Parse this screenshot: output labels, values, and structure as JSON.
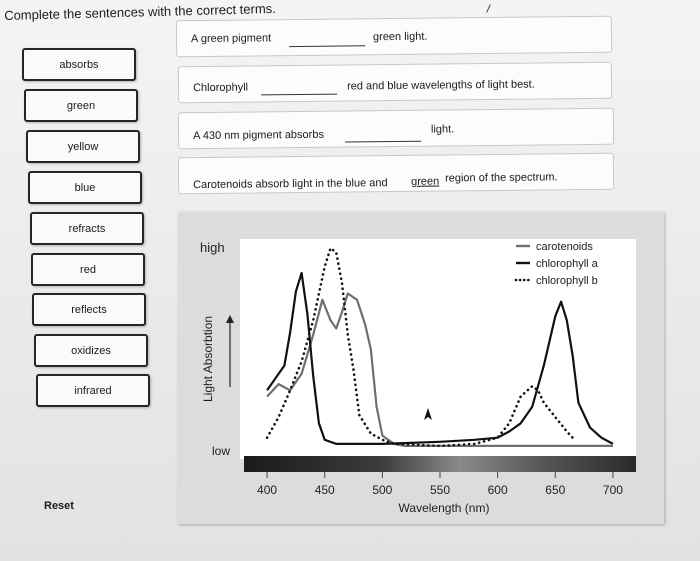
{
  "instructions": "Complete the sentences with the correct terms.",
  "word_bank": [
    {
      "label": "absorbs"
    },
    {
      "label": "green"
    },
    {
      "label": "yellow"
    },
    {
      "label": "blue"
    },
    {
      "label": "refracts"
    },
    {
      "label": "red"
    },
    {
      "label": "reflects"
    },
    {
      "label": "oxidizes"
    },
    {
      "label": "infrared"
    }
  ],
  "sentences": [
    {
      "before": "A green pigment",
      "after": "green light."
    },
    {
      "before": "Chlorophyll",
      "after": "red and blue wavelengths of light best."
    },
    {
      "before": "A 430 nm pigment absorbs",
      "after": "light."
    },
    {
      "before": "Carotenoids absorb light in the blue and",
      "filled": "green",
      "after": "region of the spectrum."
    }
  ],
  "reset_label": "Reset",
  "chart_data": {
    "type": "line",
    "xlabel": "Wavelength (nm)",
    "ylabel": "Light Absorbtion",
    "y_high_label": "high",
    "y_low_label": "low",
    "xlim": [
      380,
      720
    ],
    "ylim": [
      0,
      1
    ],
    "x_ticks": [
      400,
      450,
      500,
      550,
      600,
      650,
      700
    ],
    "grid": false,
    "legend_position": "top-right",
    "series": [
      {
        "name": "carotenoids",
        "style": "solid",
        "color": "#6f6f6f",
        "points": [
          [
            400,
            0.25
          ],
          [
            410,
            0.31
          ],
          [
            420,
            0.28
          ],
          [
            430,
            0.36
          ],
          [
            440,
            0.55
          ],
          [
            448,
            0.72
          ],
          [
            455,
            0.62
          ],
          [
            460,
            0.58
          ],
          [
            465,
            0.66
          ],
          [
            470,
            0.75
          ],
          [
            478,
            0.72
          ],
          [
            485,
            0.6
          ],
          [
            490,
            0.48
          ],
          [
            495,
            0.2
          ],
          [
            500,
            0.06
          ],
          [
            510,
            0.02
          ],
          [
            520,
            0.01
          ],
          [
            560,
            0.01
          ],
          [
            600,
            0.01
          ],
          [
            650,
            0.01
          ],
          [
            700,
            0.01
          ]
        ]
      },
      {
        "name": "chlorophyll a",
        "style": "solid",
        "color": "#111111",
        "points": [
          [
            400,
            0.28
          ],
          [
            410,
            0.36
          ],
          [
            415,
            0.4
          ],
          [
            420,
            0.56
          ],
          [
            425,
            0.76
          ],
          [
            430,
            0.85
          ],
          [
            435,
            0.65
          ],
          [
            440,
            0.35
          ],
          [
            445,
            0.12
          ],
          [
            450,
            0.04
          ],
          [
            460,
            0.02
          ],
          [
            500,
            0.02
          ],
          [
            550,
            0.03
          ],
          [
            580,
            0.04
          ],
          [
            600,
            0.05
          ],
          [
            610,
            0.08
          ],
          [
            620,
            0.12
          ],
          [
            630,
            0.2
          ],
          [
            640,
            0.4
          ],
          [
            650,
            0.64
          ],
          [
            655,
            0.71
          ],
          [
            660,
            0.62
          ],
          [
            665,
            0.45
          ],
          [
            670,
            0.22
          ],
          [
            680,
            0.1
          ],
          [
            690,
            0.05
          ],
          [
            700,
            0.02
          ]
        ]
      },
      {
        "name": "chlorophyll b",
        "style": "dotted",
        "color": "#111111",
        "points": [
          [
            400,
            0.05
          ],
          [
            410,
            0.15
          ],
          [
            420,
            0.28
          ],
          [
            430,
            0.42
          ],
          [
            440,
            0.62
          ],
          [
            450,
            0.88
          ],
          [
            455,
            0.97
          ],
          [
            460,
            0.95
          ],
          [
            465,
            0.8
          ],
          [
            470,
            0.55
          ],
          [
            475,
            0.38
          ],
          [
            480,
            0.16
          ],
          [
            490,
            0.07
          ],
          [
            500,
            0.04
          ],
          [
            510,
            0.02
          ],
          [
            550,
            0.01
          ],
          [
            580,
            0.02
          ],
          [
            600,
            0.05
          ],
          [
            610,
            0.12
          ],
          [
            620,
            0.25
          ],
          [
            630,
            0.3
          ],
          [
            635,
            0.28
          ],
          [
            640,
            0.22
          ],
          [
            650,
            0.15
          ],
          [
            660,
            0.08
          ],
          [
            665,
            0.05
          ]
        ]
      }
    ]
  }
}
